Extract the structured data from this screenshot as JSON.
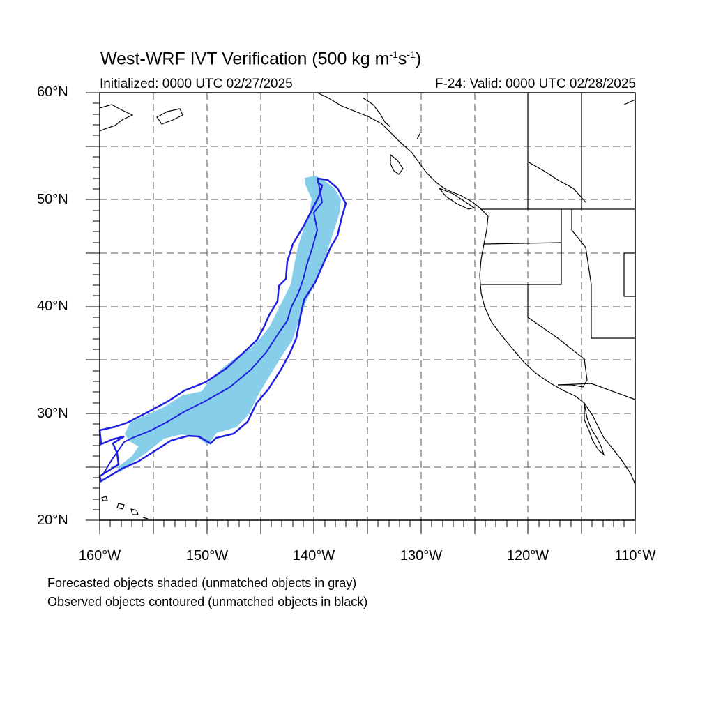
{
  "map": {
    "title_main": "West-WRF IVT Verification (500 kg m",
    "title_exp1": "-1",
    "title_mid": "s",
    "title_exp2": "-1",
    "title_end": ")",
    "initialized": "Initialized: 0000 UTC 02/27/2025",
    "valid": "F-24: Valid: 0000 UTC 02/28/2025",
    "lat_labels": [
      "60°N",
      "50°N",
      "40°N",
      "30°N",
      "20°N"
    ],
    "lon_labels": [
      "160°W",
      "150°W",
      "140°W",
      "130°W",
      "120°W",
      "110°W"
    ],
    "extent": {
      "lon_min": -160,
      "lon_max": -110,
      "lat_min": 20,
      "lat_max": 60
    },
    "footnote_1": "Forecasted objects shaded (unmatched objects in gray)",
    "footnote_2": "Observed objects contoured (unmatched objects in black)",
    "colors": {
      "forecast_fill": "#87ceeb",
      "observed_contour": "#1f1fe0",
      "coastline": "#000000",
      "grid": "#555555"
    }
  }
}
